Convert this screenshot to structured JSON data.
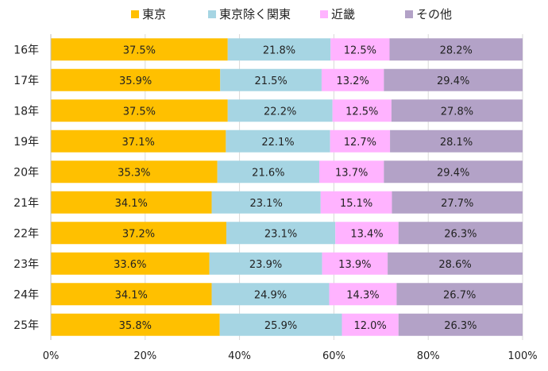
{
  "chart_data": {
    "type": "bar",
    "orientation": "horizontal",
    "stacked": "percent",
    "title": "",
    "xlabel": "",
    "ylabel": "",
    "xlim": [
      0,
      100
    ],
    "x_ticks": [
      "0%",
      "20%",
      "40%",
      "60%",
      "80%",
      "100%"
    ],
    "grid": true,
    "legend_position": "top",
    "categories": [
      "16年",
      "17年",
      "18年",
      "19年",
      "20年",
      "21年",
      "22年",
      "23年",
      "24年",
      "25年"
    ],
    "series": [
      {
        "name": "東京",
        "color": "#FFC000",
        "values": [
          37.5,
          35.9,
          37.5,
          37.1,
          35.3,
          34.1,
          37.2,
          33.6,
          34.1,
          35.8
        ],
        "labels": [
          "37.5%",
          "35.9%",
          "37.5%",
          "37.1%",
          "35.3%",
          "34.1%",
          "37.2%",
          "33.6%",
          "34.1%",
          "35.8%"
        ]
      },
      {
        "name": "東京除く関東",
        "color": "#A6D5E3",
        "values": [
          21.8,
          21.5,
          22.2,
          22.1,
          21.6,
          23.1,
          23.1,
          23.9,
          24.9,
          25.9
        ],
        "labels": [
          "21.8%",
          "21.5%",
          "22.2%",
          "22.1%",
          "21.6%",
          "23.1%",
          "23.1%",
          "23.9%",
          "24.9%",
          "25.9%"
        ]
      },
      {
        "name": "近畿",
        "color": "#FFB3FF",
        "values": [
          12.5,
          13.2,
          12.5,
          12.7,
          13.7,
          15.1,
          13.4,
          13.9,
          14.3,
          12.0
        ],
        "labels": [
          "12.5%",
          "13.2%",
          "12.5%",
          "12.7%",
          "13.7%",
          "15.1%",
          "13.4%",
          "13.9%",
          "14.3%",
          "12.0%"
        ]
      },
      {
        "name": "その他",
        "color": "#B3A2C7",
        "values": [
          28.2,
          29.4,
          27.8,
          28.1,
          29.4,
          27.7,
          26.3,
          28.6,
          26.7,
          26.3
        ],
        "labels": [
          "28.2%",
          "29.4%",
          "27.8%",
          "28.1%",
          "29.4%",
          "27.7%",
          "26.3%",
          "28.6%",
          "26.7%",
          "26.3%"
        ]
      }
    ]
  }
}
